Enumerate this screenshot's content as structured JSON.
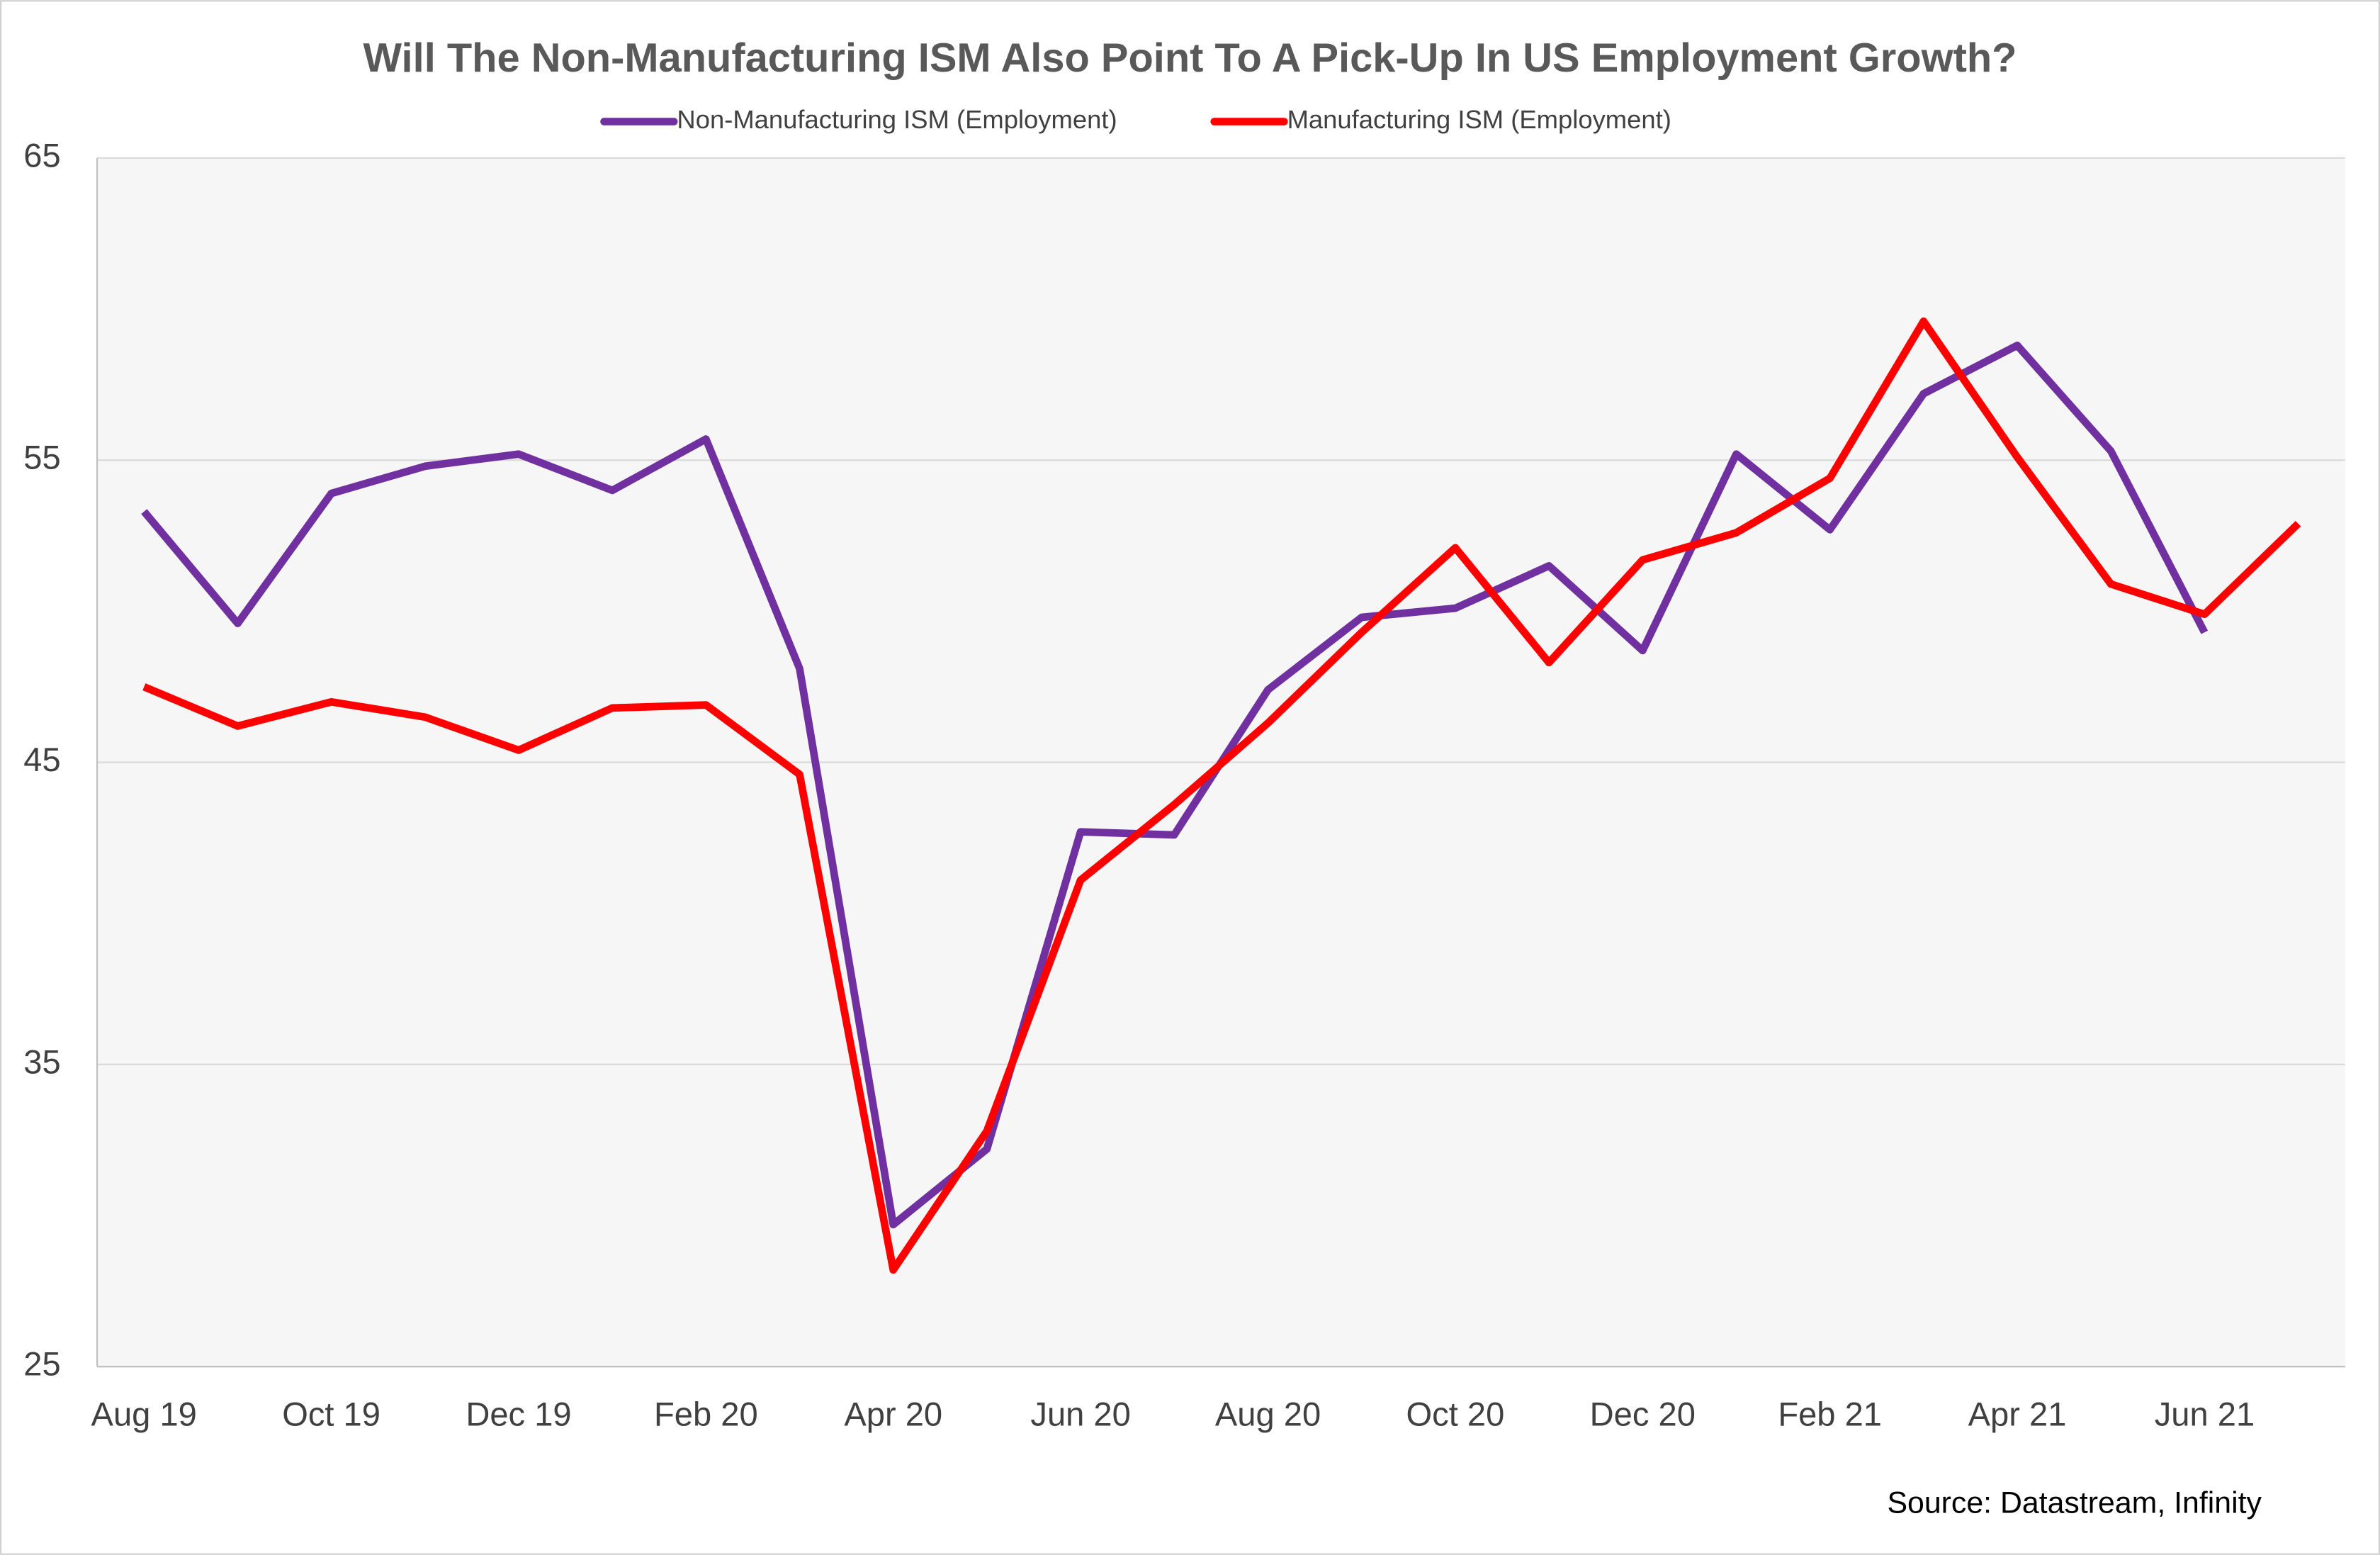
{
  "chart_data": {
    "type": "line",
    "title": "Will The Non-Manufacturing ISM Also Point To A Pick-Up In US Employment Growth?",
    "source": "Source: Datastream, Infinity",
    "categories": [
      "Aug 19",
      null,
      "Oct 19",
      null,
      "Dec 19",
      null,
      "Feb 20",
      null,
      "Apr 20",
      null,
      "Jun 20",
      null,
      "Aug 20",
      null,
      "Oct 20",
      null,
      "Dec 20",
      null,
      "Feb 21",
      null,
      "Apr 21",
      null,
      "Jun 21",
      null
    ],
    "series": [
      {
        "name": "Non-Manufacturing ISM (Employment)",
        "color": "#7030a0",
        "values": [
          53.3,
          49.6,
          53.9,
          54.8,
          55.2,
          54.0,
          55.7,
          48.1,
          29.7,
          32.2,
          42.7,
          42.6,
          47.4,
          49.8,
          50.1,
          51.5,
          48.7,
          55.2,
          52.7,
          57.2,
          58.8,
          55.3,
          49.3,
          null
        ]
      },
      {
        "name": "Manufacturing ISM (Employment)",
        "color": "#ff0000",
        "values": [
          47.5,
          46.2,
          47.0,
          46.5,
          45.4,
          46.8,
          46.9,
          44.6,
          28.2,
          32.8,
          41.1,
          43.6,
          46.3,
          49.3,
          52.1,
          48.3,
          51.7,
          52.6,
          54.4,
          59.6,
          55.1,
          50.9,
          49.9,
          52.9
        ]
      }
    ],
    "ylim": [
      25,
      65
    ],
    "yticks": [
      25,
      35,
      45,
      55,
      65
    ],
    "grid": true,
    "legend": "top"
  }
}
